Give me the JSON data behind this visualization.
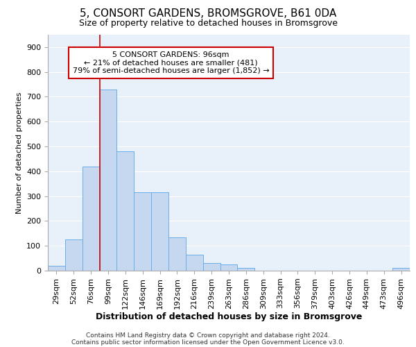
{
  "title1": "5, CONSORT GARDENS, BROMSGROVE, B61 0DA",
  "title2": "Size of property relative to detached houses in Bromsgrove",
  "xlabel": "Distribution of detached houses by size in Bromsgrove",
  "ylabel": "Number of detached properties",
  "categories": [
    "29sqm",
    "52sqm",
    "76sqm",
    "99sqm",
    "122sqm",
    "146sqm",
    "169sqm",
    "192sqm",
    "216sqm",
    "239sqm",
    "263sqm",
    "286sqm",
    "309sqm",
    "333sqm",
    "356sqm",
    "379sqm",
    "403sqm",
    "426sqm",
    "449sqm",
    "473sqm",
    "496sqm"
  ],
  "values": [
    20,
    125,
    420,
    730,
    480,
    315,
    315,
    135,
    65,
    30,
    25,
    10,
    0,
    0,
    0,
    0,
    0,
    0,
    0,
    0,
    10
  ],
  "bar_color": "#c5d8f0",
  "bar_edge_color": "#6aaee8",
  "vline_bin_index": 3,
  "annotation_line1": "5 CONSORT GARDENS: 96sqm",
  "annotation_line2": "← 21% of detached houses are smaller (481)",
  "annotation_line3": "79% of semi-detached houses are larger (1,852) →",
  "annotation_box_color": "#ffffff",
  "annotation_box_edge_color": "#cc0000",
  "vline_color": "#cc0000",
  "footnote1": "Contains HM Land Registry data © Crown copyright and database right 2024.",
  "footnote2": "Contains public sector information licensed under the Open Government Licence v3.0.",
  "ylim": [
    0,
    950
  ],
  "yticks": [
    0,
    100,
    200,
    300,
    400,
    500,
    600,
    700,
    800,
    900
  ],
  "bg_color": "#e8f0fa",
  "grid_color": "#ffffff",
  "title1_fontsize": 11,
  "title2_fontsize": 9,
  "xlabel_fontsize": 9,
  "ylabel_fontsize": 8,
  "tick_fontsize": 8,
  "annot_fontsize": 8
}
